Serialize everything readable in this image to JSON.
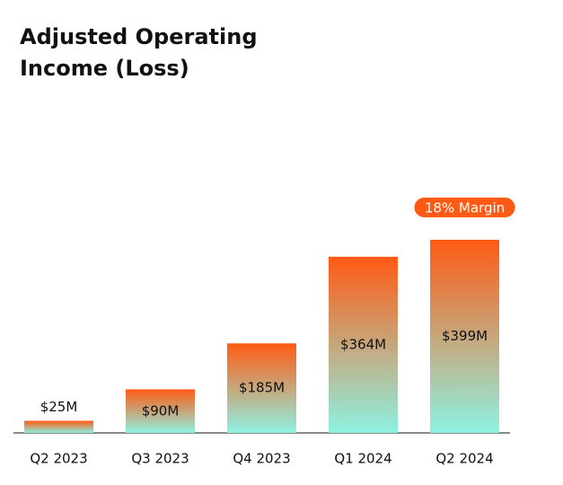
{
  "chart_data": {
    "type": "bar",
    "title": "Adjusted Operating Income (Loss)",
    "categories": [
      "Q2 2023",
      "Q3 2023",
      "Q4 2023",
      "Q1 2024",
      "Q2 2024"
    ],
    "values": [
      25,
      90,
      185,
      364,
      399
    ],
    "value_labels": [
      "$25M",
      "$90M",
      "$185M",
      "$364M",
      "$399M"
    ],
    "color": "#ff5a14",
    "annotation": "18% Margin"
  }
}
